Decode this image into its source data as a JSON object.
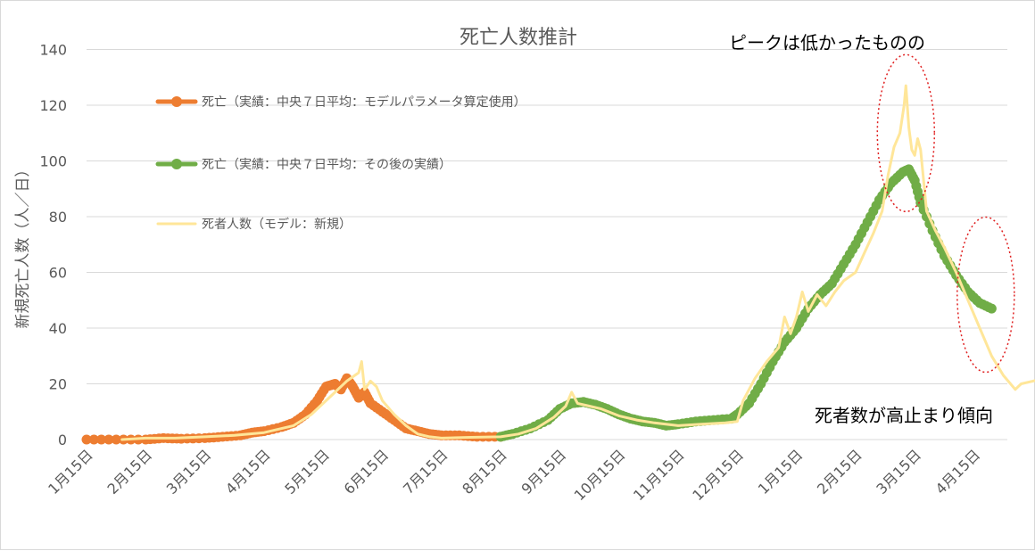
{
  "chart_data": {
    "type": "line",
    "title": "死亡人数推計",
    "ylabel": "新規死亡人数（人／日）",
    "xlabel": "",
    "ylim": [
      0,
      140
    ],
    "yticks": [
      0,
      20,
      40,
      60,
      80,
      100,
      120,
      140
    ],
    "grid": "horizontal",
    "legend_position": "upper-left",
    "x_start": "1月15日",
    "x_end": "4月30日",
    "categories": [
      "1月15日",
      "2月15日",
      "3月15日",
      "4月15日",
      "5月15日",
      "6月15日",
      "7月15日",
      "8月15日",
      "9月15日",
      "10月15日",
      "11月15日",
      "12月15日",
      "1月15日",
      "2月15日",
      "3月15日",
      "4月15日"
    ],
    "series": [
      {
        "name": "死亡（実績：中央７日平均：モデルパラメータ算定使用）",
        "color": "#ED7D31",
        "style": "line-dots",
        "points": [
          [
            0,
            0
          ],
          [
            0.5,
            0
          ],
          [
            1,
            0
          ],
          [
            1.3,
            0.5
          ],
          [
            1.6,
            0.3
          ],
          [
            2,
            0.5
          ],
          [
            2.3,
            1
          ],
          [
            2.6,
            1.5
          ],
          [
            2.8,
            2.5
          ],
          [
            3,
            3
          ],
          [
            3.3,
            4.5
          ],
          [
            3.5,
            6
          ],
          [
            3.7,
            9
          ],
          [
            3.9,
            14
          ],
          [
            4.05,
            19
          ],
          [
            4.2,
            20
          ],
          [
            4.3,
            18
          ],
          [
            4.4,
            22
          ],
          [
            4.5,
            19
          ],
          [
            4.6,
            15
          ],
          [
            4.7,
            17
          ],
          [
            4.8,
            13
          ],
          [
            5,
            10
          ],
          [
            5.2,
            7
          ],
          [
            5.4,
            4
          ],
          [
            5.6,
            3
          ],
          [
            5.8,
            2
          ],
          [
            6,
            1.5
          ],
          [
            6.3,
            1.5
          ],
          [
            6.6,
            1
          ],
          [
            7,
            1
          ]
        ]
      },
      {
        "name": "死亡（実績：中央７日平均：その後の実績）",
        "color": "#70AD47",
        "style": "line-dots",
        "points": [
          [
            7,
            1
          ],
          [
            7.2,
            2
          ],
          [
            7.5,
            4
          ],
          [
            7.8,
            7
          ],
          [
            8,
            11
          ],
          [
            8.2,
            13
          ],
          [
            8.4,
            13.5
          ],
          [
            8.6,
            12.5
          ],
          [
            8.8,
            11
          ],
          [
            9,
            9
          ],
          [
            9.2,
            7.5
          ],
          [
            9.4,
            6.5
          ],
          [
            9.6,
            6
          ],
          [
            9.8,
            5
          ],
          [
            10,
            5.5
          ],
          [
            10.3,
            6.5
          ],
          [
            10.6,
            7
          ],
          [
            10.9,
            7.5
          ],
          [
            11,
            9
          ],
          [
            11.2,
            13
          ],
          [
            11.4,
            20
          ],
          [
            11.6,
            28
          ],
          [
            11.8,
            35
          ],
          [
            12,
            40
          ],
          [
            12.2,
            47
          ],
          [
            12.4,
            52
          ],
          [
            12.6,
            56
          ],
          [
            12.8,
            63
          ],
          [
            13,
            70
          ],
          [
            13.2,
            78
          ],
          [
            13.4,
            86
          ],
          [
            13.6,
            92
          ],
          [
            13.8,
            96
          ],
          [
            13.9,
            97
          ],
          [
            14.0,
            93
          ],
          [
            14.1,
            85
          ],
          [
            14.3,
            75
          ],
          [
            14.5,
            66
          ],
          [
            14.7,
            59
          ],
          [
            14.9,
            53
          ],
          [
            15.1,
            49
          ],
          [
            15.3,
            47
          ]
        ]
      },
      {
        "name": "死者人数（モデル：新規）",
        "color": "#FFE699",
        "style": "line",
        "points": [
          [
            0.6,
            0
          ],
          [
            1,
            0.5
          ],
          [
            1.5,
            0.5
          ],
          [
            2,
            1
          ],
          [
            2.5,
            1.5
          ],
          [
            3,
            2.5
          ],
          [
            3.5,
            5
          ],
          [
            3.8,
            9
          ],
          [
            4,
            13
          ],
          [
            4.2,
            17
          ],
          [
            4.4,
            21
          ],
          [
            4.6,
            24
          ],
          [
            4.65,
            28
          ],
          [
            4.7,
            18
          ],
          [
            4.8,
            21
          ],
          [
            4.9,
            19
          ],
          [
            5,
            14
          ],
          [
            5.2,
            9
          ],
          [
            5.4,
            5
          ],
          [
            5.6,
            2
          ],
          [
            5.8,
            1
          ],
          [
            6,
            0.5
          ],
          [
            6.5,
            0.8
          ],
          [
            7,
            1
          ],
          [
            7.3,
            2
          ],
          [
            7.6,
            4
          ],
          [
            7.9,
            8
          ],
          [
            8.1,
            12
          ],
          [
            8.2,
            17
          ],
          [
            8.3,
            13
          ],
          [
            8.5,
            12
          ],
          [
            8.7,
            11
          ],
          [
            9,
            8.5
          ],
          [
            9.3,
            7
          ],
          [
            9.6,
            6
          ],
          [
            10,
            5
          ],
          [
            10.4,
            5.5
          ],
          [
            10.8,
            6
          ],
          [
            11,
            6.5
          ],
          [
            11.1,
            14
          ],
          [
            11.3,
            22
          ],
          [
            11.5,
            28
          ],
          [
            11.7,
            33
          ],
          [
            11.8,
            44
          ],
          [
            11.9,
            38
          ],
          [
            12,
            44
          ],
          [
            12.1,
            53
          ],
          [
            12.2,
            46
          ],
          [
            12.35,
            52
          ],
          [
            12.5,
            48
          ],
          [
            12.65,
            53
          ],
          [
            12.8,
            57
          ],
          [
            13,
            60
          ],
          [
            13.15,
            67
          ],
          [
            13.3,
            74
          ],
          [
            13.45,
            82
          ],
          [
            13.55,
            95
          ],
          [
            13.65,
            105
          ],
          [
            13.75,
            110
          ],
          [
            13.82,
            120
          ],
          [
            13.85,
            127
          ],
          [
            13.9,
            112
          ],
          [
            13.95,
            104
          ],
          [
            14,
            102
          ],
          [
            14.05,
            108
          ],
          [
            14.1,
            104
          ],
          [
            14.2,
            82
          ],
          [
            14.35,
            75
          ],
          [
            14.5,
            69
          ],
          [
            14.7,
            60
          ],
          [
            14.9,
            50
          ],
          [
            15.1,
            40
          ],
          [
            15.3,
            30
          ],
          [
            15.5,
            23
          ],
          [
            15.7,
            18
          ],
          [
            15.8,
            20
          ],
          [
            16,
            21
          ],
          [
            16.2,
            22
          ],
          [
            16.5,
            25
          ],
          [
            16.8,
            30
          ],
          [
            17,
            34
          ],
          [
            17.2,
            37
          ]
        ]
      }
    ],
    "annotations": [
      {
        "text": "ピークは低かったものの",
        "ellipse_center": [
          13.85,
          110
        ]
      },
      {
        "text": "死者数が高止まり傾向",
        "ellipse_center": [
          15.2,
          52
        ]
      }
    ]
  }
}
